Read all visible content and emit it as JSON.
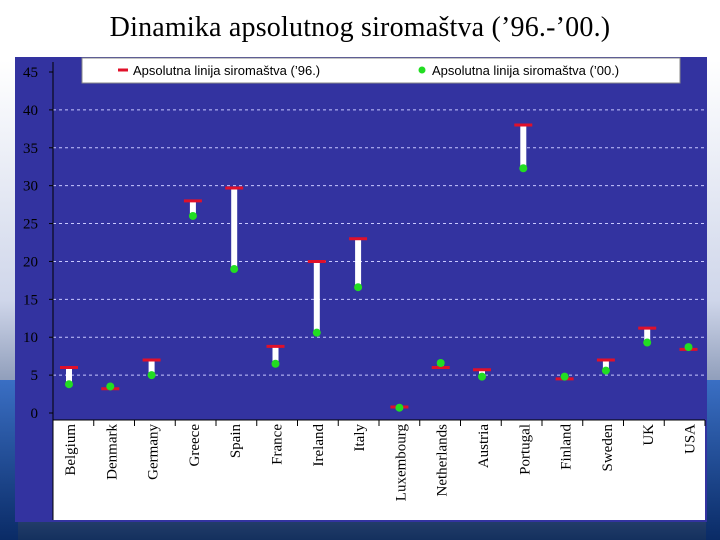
{
  "slide": {
    "title": "Dinamika apsolutnog siromaštva (’96.-’00.)"
  },
  "colors": {
    "plot_bg": "#3333a0",
    "grid": "#c8c8ff",
    "bar": "#ffffff",
    "marker96": "#e0102a",
    "marker00": "#22dd22",
    "label_bg": "#ffffff"
  },
  "chart_data": {
    "type": "range",
    "title": "Dinamika apsolutnog siromaštva (’96.-’00.)",
    "xlabel": "",
    "ylabel": "",
    "ylim": [
      0,
      45
    ],
    "yticks": [
      0,
      5,
      10,
      15,
      20,
      25,
      30,
      35,
      40,
      45
    ],
    "grid": true,
    "legend": "top",
    "categories": [
      "Belgium",
      "Denmark",
      "Germany",
      "Greece",
      "Spain",
      "France",
      "Ireland",
      "Italy",
      "Luxembourg",
      "Netherlands",
      "Austria",
      "Portugal",
      "Finland",
      "Sweden",
      "UK",
      "USA"
    ],
    "series": [
      {
        "name": "Apsolutna linija siromaštva (’96.)",
        "marker": "dash",
        "values": [
          6.0,
          3.2,
          7.0,
          28.0,
          29.7,
          8.8,
          20.0,
          23.0,
          0.8,
          6.0,
          5.7,
          38.0,
          4.5,
          7.0,
          11.2,
          8.4
        ]
      },
      {
        "name": "Apsolutna linija siromaštva (’00.)",
        "marker": "dot",
        "values": [
          3.8,
          3.5,
          5.0,
          26.0,
          19.0,
          6.5,
          10.6,
          16.6,
          0.7,
          6.6,
          4.8,
          32.3,
          4.8,
          5.6,
          9.3,
          8.7
        ]
      }
    ]
  }
}
